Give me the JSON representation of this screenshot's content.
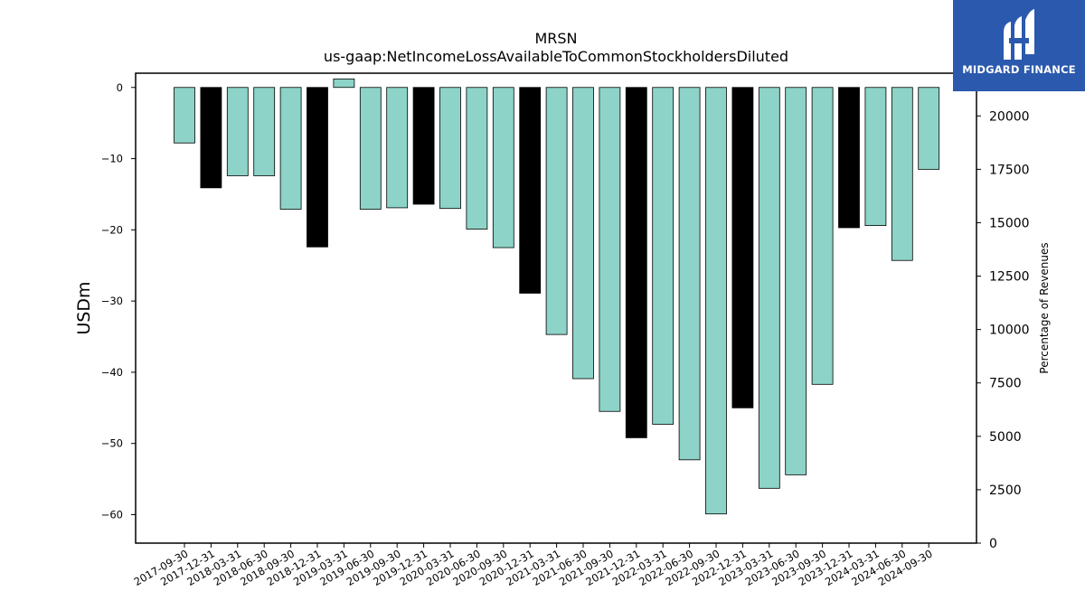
{
  "chart_data": {
    "type": "bar",
    "title": "MRSN",
    "subtitle": "us-gaap:NetIncomeLossAvailableToCommonStockholdersDiluted",
    "ylabel": "USDm",
    "y2label": "Percentage of Revenues",
    "ylim": [
      -64,
      2
    ],
    "y2lim": [
      0,
      22000
    ],
    "yticks": [
      0,
      -10,
      -20,
      -30,
      -40,
      -50,
      -60
    ],
    "y2ticks": [
      0,
      2500,
      5000,
      7500,
      10000,
      12500,
      15000,
      17500,
      20000
    ],
    "grid": false,
    "categories": [
      "2017-09-30",
      "2017-12-31",
      "2018-03-31",
      "2018-06-30",
      "2018-09-30",
      "2018-12-31",
      "2019-03-31",
      "2019-06-30",
      "2019-09-30",
      "2019-12-31",
      "2020-03-31",
      "2020-06-30",
      "2020-09-30",
      "2020-12-31",
      "2021-03-31",
      "2021-06-30",
      "2021-09-30",
      "2021-12-31",
      "2022-03-31",
      "2022-06-30",
      "2022-09-30",
      "2022-12-31",
      "2023-03-31",
      "2023-06-30",
      "2023-09-30",
      "2023-12-31",
      "2024-03-31",
      "2024-06-30",
      "2024-09-30"
    ],
    "values": [
      -7.8,
      -14.1,
      -12.4,
      -12.4,
      -17.1,
      -22.4,
      1.2,
      -17.1,
      -16.9,
      -16.4,
      -17.0,
      -19.9,
      -22.5,
      -28.9,
      -34.7,
      -40.9,
      -45.5,
      -49.2,
      -47.3,
      -52.3,
      -59.9,
      -45.0,
      -56.3,
      -54.4,
      -41.7,
      -19.7,
      -19.4,
      -24.3,
      -11.5
    ],
    "bar_colors": [
      "#8dd3c7",
      "#000000",
      "#8dd3c7",
      "#8dd3c7",
      "#8dd3c7",
      "#000000",
      "#8dd3c7",
      "#8dd3c7",
      "#8dd3c7",
      "#000000",
      "#8dd3c7",
      "#8dd3c7",
      "#8dd3c7",
      "#000000",
      "#8dd3c7",
      "#8dd3c7",
      "#8dd3c7",
      "#000000",
      "#8dd3c7",
      "#8dd3c7",
      "#8dd3c7",
      "#000000",
      "#8dd3c7",
      "#8dd3c7",
      "#8dd3c7",
      "#000000",
      "#8dd3c7",
      "#8dd3c7",
      "#8dd3c7"
    ],
    "colors": {
      "quarter": "#8dd3c7",
      "year_end": "#000000",
      "edge": "#000000"
    }
  },
  "logo": {
    "text": "MIDGARD FINANCE",
    "background": "#2b59ad"
  }
}
